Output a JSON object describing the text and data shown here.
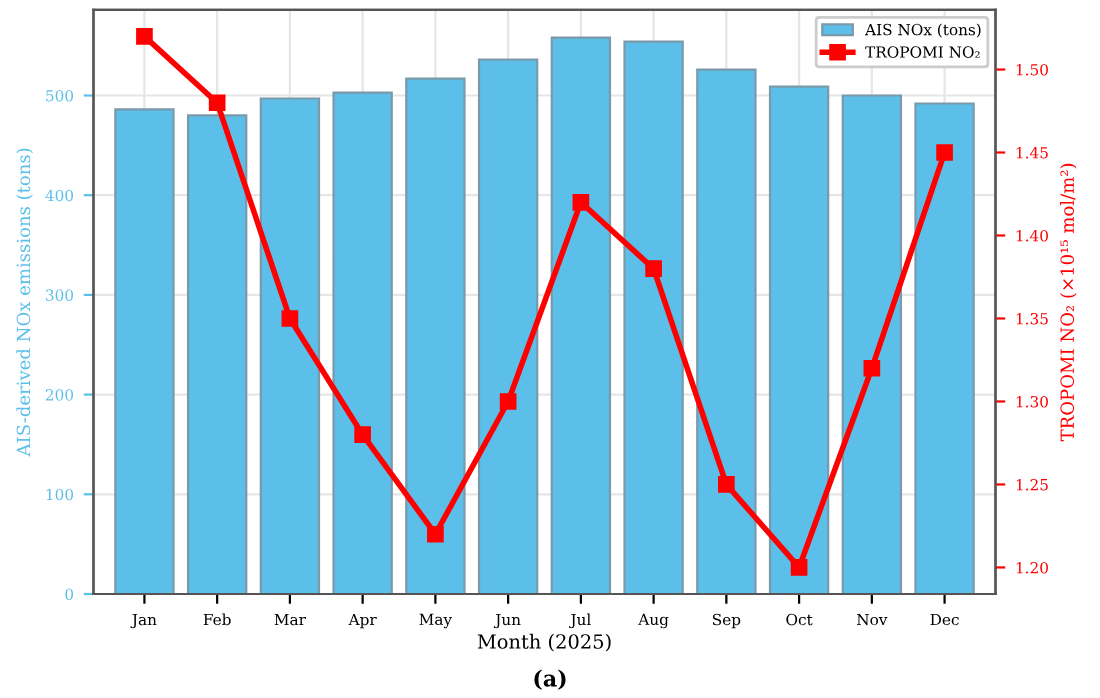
{
  "chart_data": {
    "type": "bar",
    "title": "(a)",
    "xlabel": "Month (2025)",
    "ylabel": "AIS-derived NOx emissions (tons)",
    "y2label": "TROPOMI NO₂ (×10¹⁵ mol/m²)",
    "categories": [
      "Jan",
      "Feb",
      "Mar",
      "Apr",
      "May",
      "Jun",
      "Jul",
      "Aug",
      "Sep",
      "Oct",
      "Nov",
      "Dec"
    ],
    "series": [
      {
        "name": "AIS NOx (tons)",
        "color": "#5bbfea",
        "values": [
          486,
          480,
          497,
          503,
          517,
          536,
          558,
          554,
          526,
          509,
          500,
          492
        ]
      },
      {
        "name": "TROPOMI NO₂",
        "type": "line",
        "axis": "y2",
        "color": "#ff0000",
        "marker": "square",
        "values": [
          1.52,
          1.48,
          1.35,
          1.28,
          1.22,
          1.3,
          1.42,
          1.38,
          1.25,
          1.2,
          1.32,
          1.45
        ]
      }
    ],
    "ylim": [
      0,
      586
    ],
    "yticks": [
      0,
      100,
      200,
      300,
      400,
      500
    ],
    "y2lim": [
      1.184,
      1.536
    ],
    "y2ticks": [
      {
        "value": 1.2,
        "label": "1.20"
      },
      {
        "value": 1.25,
        "label": "1.25"
      },
      {
        "value": 1.3,
        "label": "1.30"
      },
      {
        "value": 1.35,
        "label": "1.35"
      },
      {
        "value": 1.4,
        "label": "1.40"
      },
      {
        "value": 1.45,
        "label": "1.45"
      },
      {
        "value": 1.5,
        "label": "1.50"
      }
    ],
    "grid": true,
    "legend": "top right"
  }
}
